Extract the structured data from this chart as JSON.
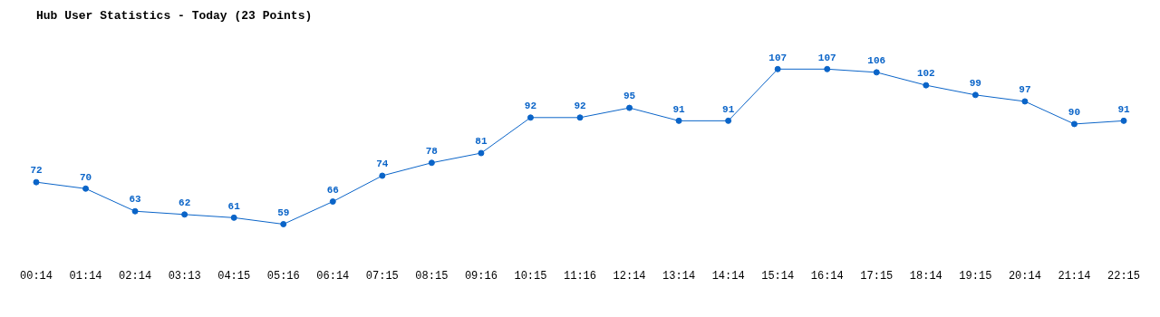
{
  "chart_data": {
    "type": "line",
    "title": "Hub User Statistics - Today (23 Points)",
    "categories": [
      "00:14",
      "01:14",
      "02:14",
      "03:13",
      "04:15",
      "05:16",
      "06:14",
      "07:15",
      "08:15",
      "09:16",
      "10:15",
      "11:16",
      "12:14",
      "13:14",
      "14:14",
      "15:14",
      "16:14",
      "17:15",
      "18:14",
      "19:15",
      "20:14",
      "21:14",
      "22:15"
    ],
    "values": [
      72,
      70,
      63,
      62,
      61,
      59,
      66,
      74,
      78,
      81,
      92,
      92,
      95,
      91,
      91,
      107,
      107,
      106,
      102,
      99,
      97,
      90,
      91
    ],
    "color": "#0a64c8",
    "data_labels": true,
    "marker": "circle",
    "line_style": "solid",
    "grid": false,
    "legend": false,
    "tick_labels": "x"
  }
}
